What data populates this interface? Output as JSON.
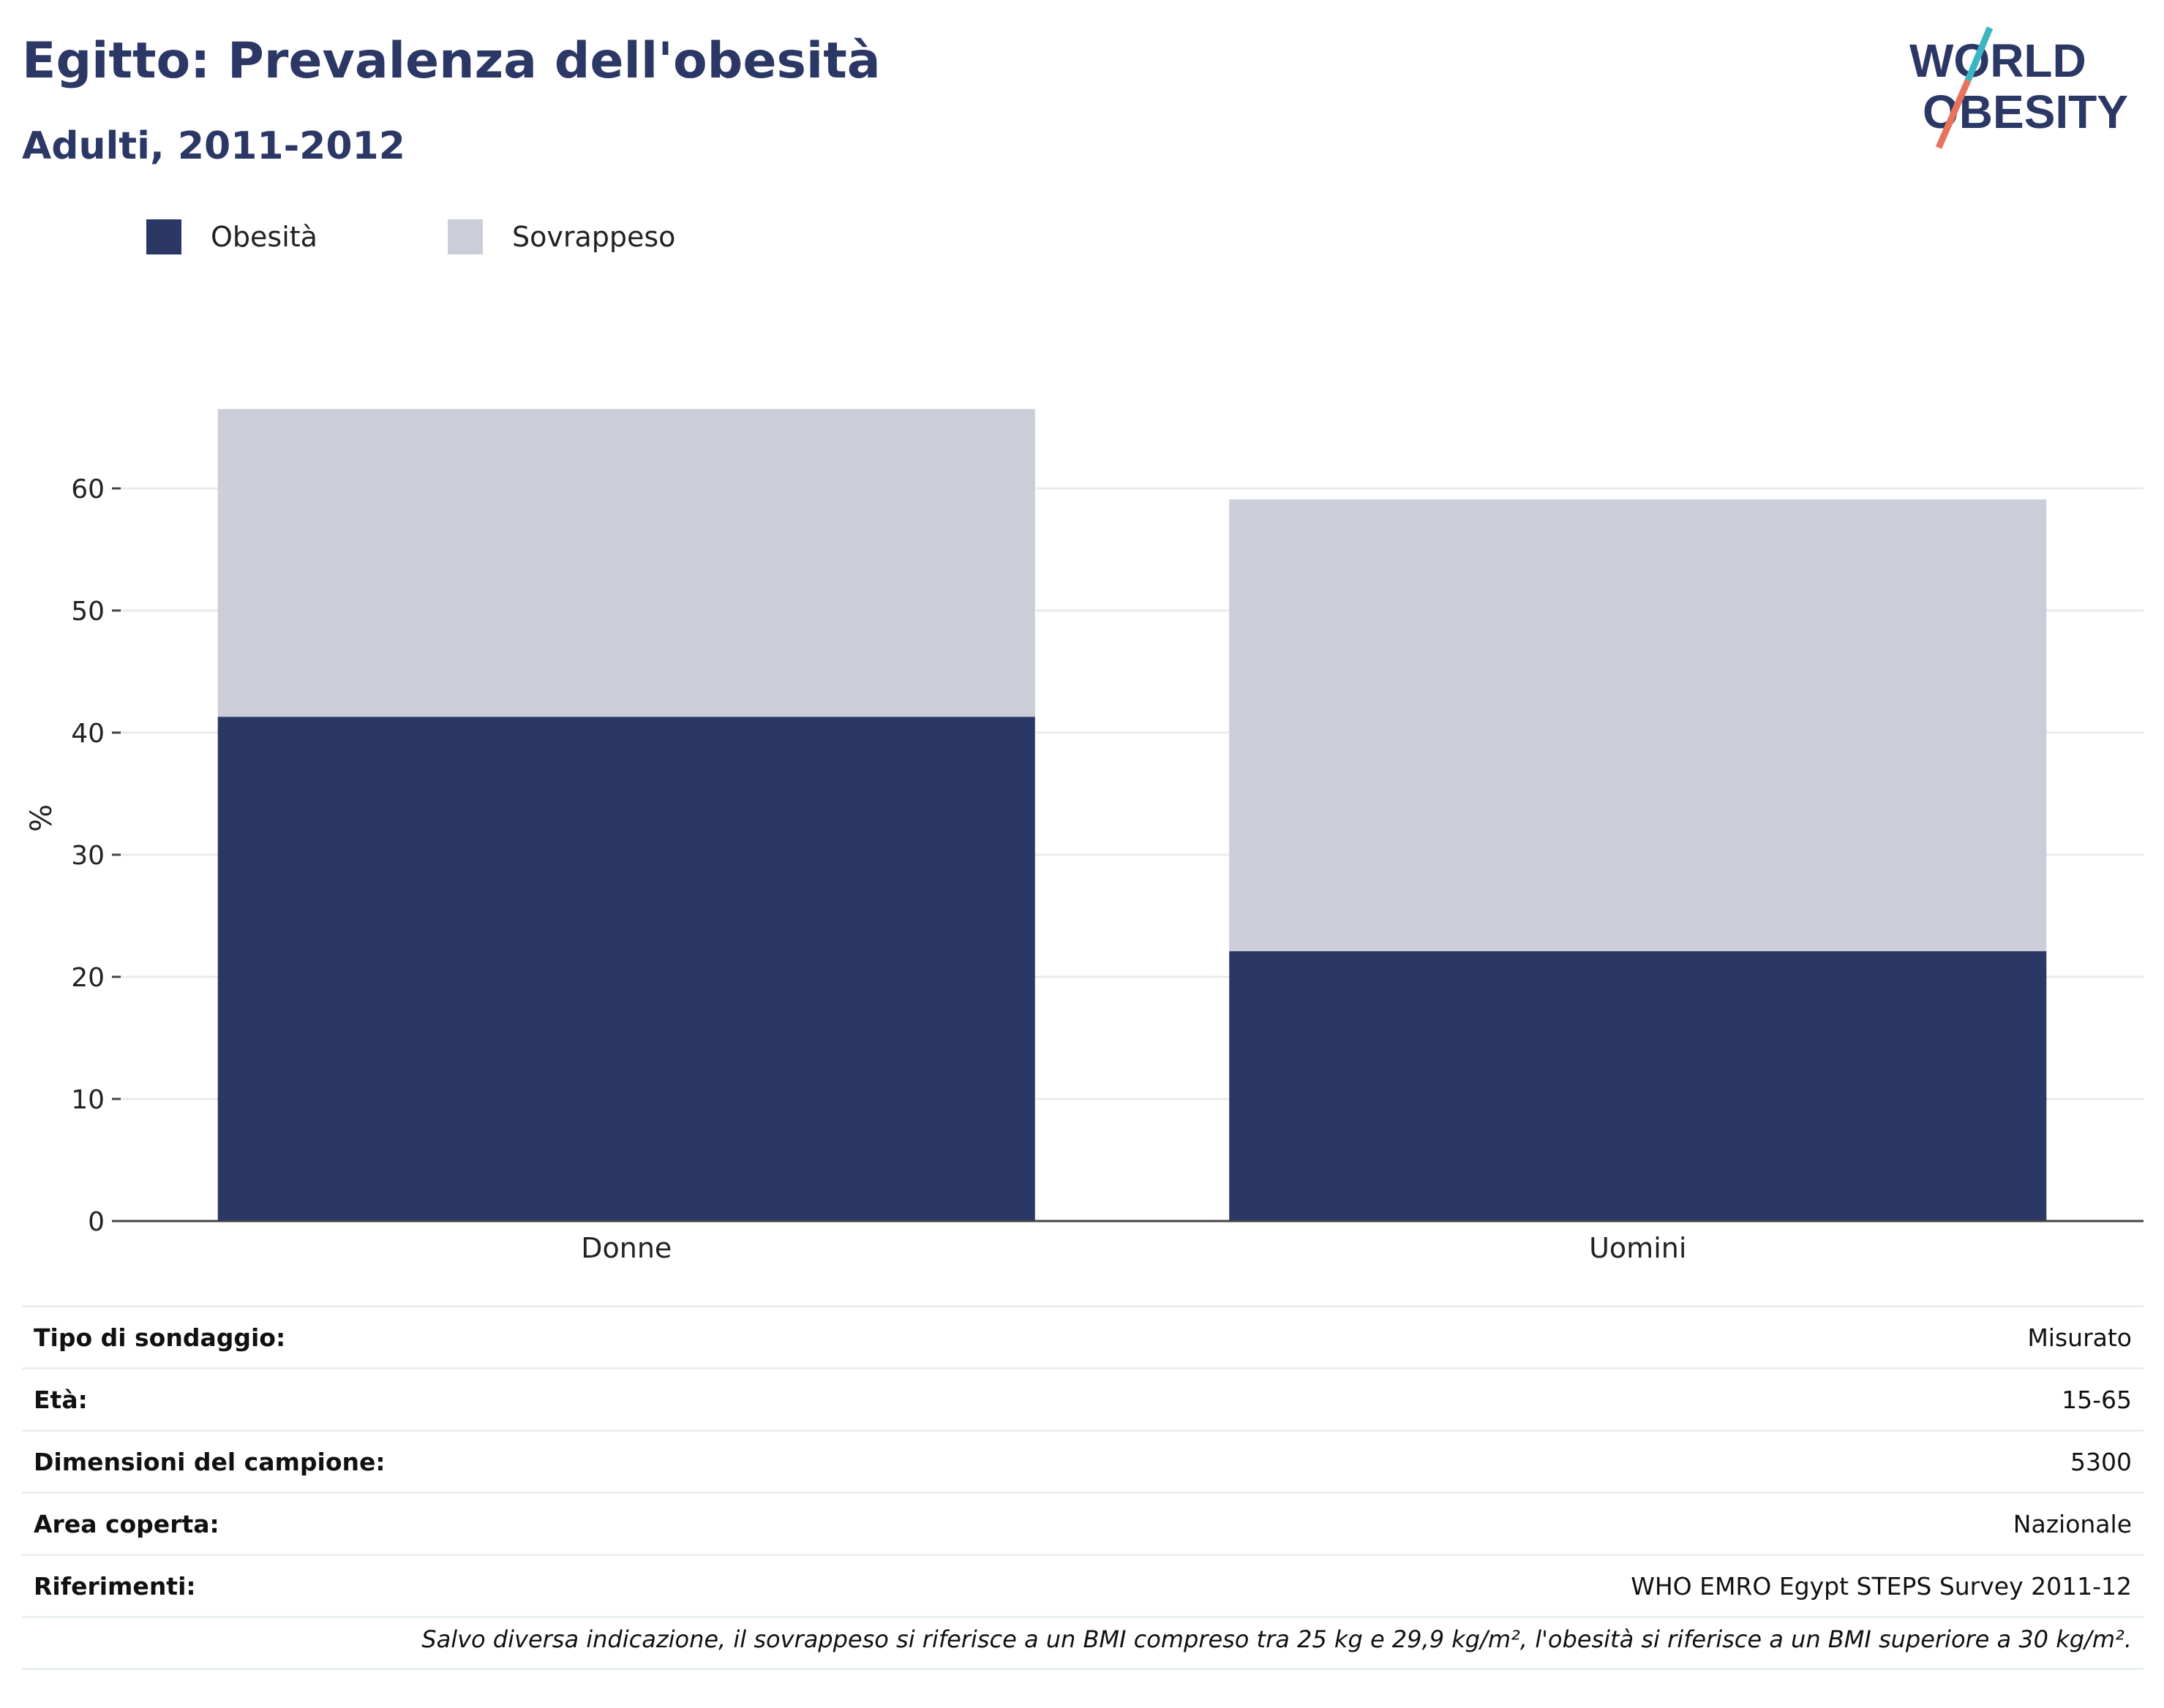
{
  "header": {
    "title": "Egitto: Prevalenza dell'obesità",
    "subtitle": "Adulti, 2011-2012"
  },
  "logo": {
    "line1": "WORLD",
    "line2": "OBESITY",
    "colors": {
      "text": "#2b3765",
      "slash_top": "#3bb5c2",
      "slash_bottom": "#e8735c"
    }
  },
  "legend": [
    {
      "label": "Obesità",
      "color": "#2b3765"
    },
    {
      "label": "Sovrappeso",
      "color": "#cbcdd8"
    }
  ],
  "chart_data": {
    "type": "bar",
    "stacked": true,
    "categories": [
      "Donne",
      "Uomini"
    ],
    "series": [
      {
        "name": "Obesità",
        "values": [
          41.3,
          22.1
        ],
        "color": "#2b3765"
      },
      {
        "name": "Sovrappeso",
        "values": [
          25.2,
          37.0
        ],
        "color": "#cbcdd8"
      }
    ],
    "ylabel": "%",
    "ylim": [
      0,
      66.5
    ],
    "yticks": [
      "0",
      "10",
      "20",
      "30",
      "40",
      "50",
      "60"
    ],
    "grid": true,
    "legend_position": "top-left"
  },
  "info": [
    {
      "label": "Tipo di sondaggio:",
      "value": "Misurato"
    },
    {
      "label": "Età:",
      "value": "15-65"
    },
    {
      "label": "Dimensioni del campione:",
      "value": "5300"
    },
    {
      "label": "Area coperta:",
      "value": "Nazionale"
    },
    {
      "label": "Riferimenti:",
      "value": "WHO EMRO Egypt STEPS Survey 2011-12"
    }
  ],
  "note": "Salvo diversa indicazione, il sovrappeso si riferisce a un BMI compreso tra 25 kg e 29,9 kg/m², l'obesità si riferisce a un BMI superiore a 30 kg/m²."
}
